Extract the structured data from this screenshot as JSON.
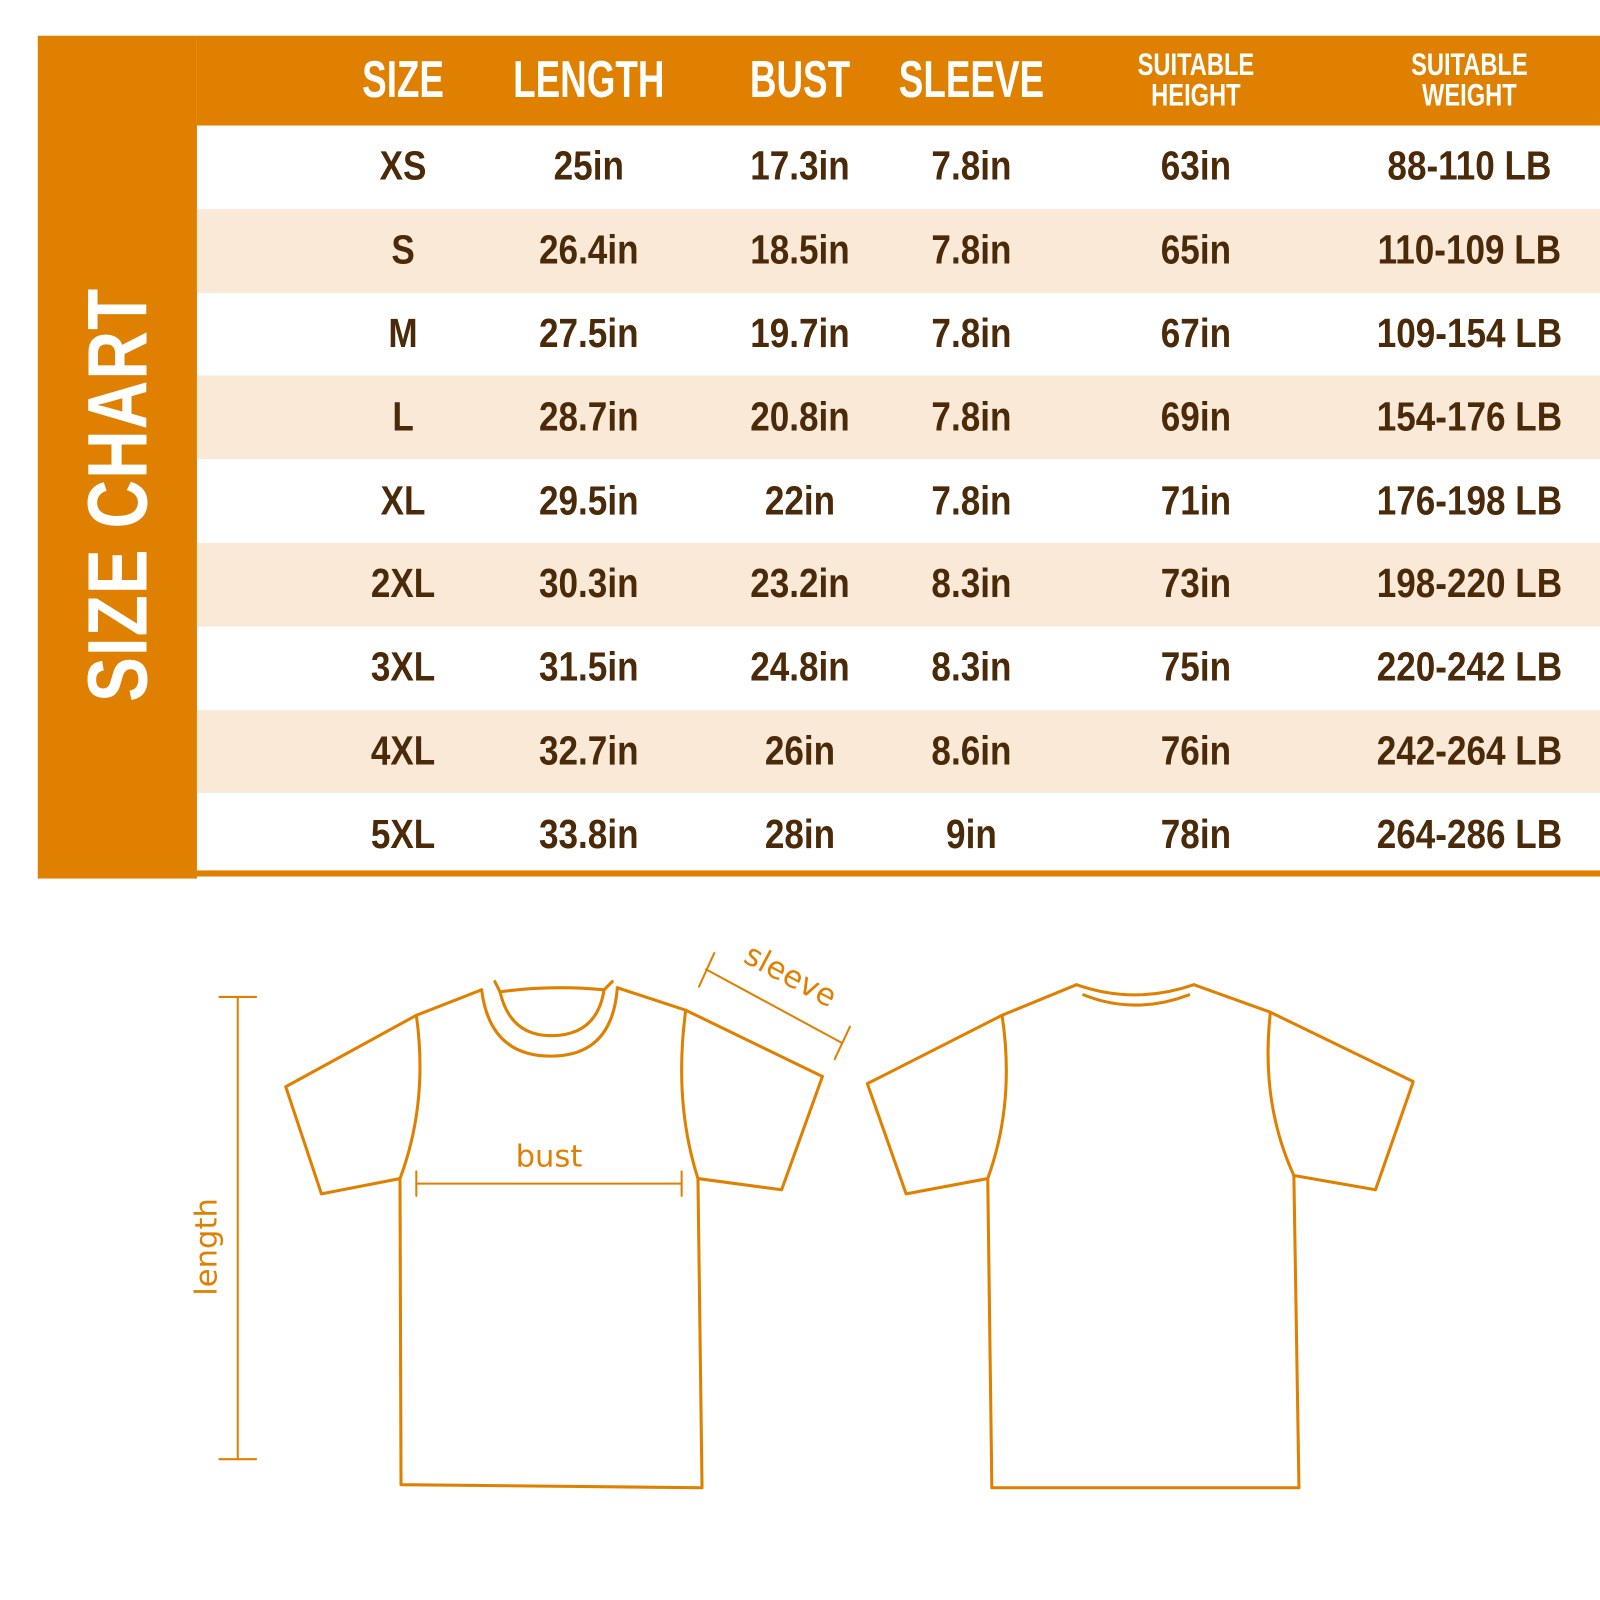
{
  "title": "SIZE CHART",
  "colors": {
    "accent": "#E08000",
    "stripe": "#FAE9D7",
    "text": "#4A2A08"
  },
  "columns": [
    {
      "label": [
        "SIZE"
      ]
    },
    {
      "label": [
        "LENGTH"
      ]
    },
    {
      "label": [
        "BUST"
      ]
    },
    {
      "label": [
        "SLEEVE"
      ]
    },
    {
      "label": [
        "SUITABLE",
        "HEIGHT"
      ]
    },
    {
      "label": [
        "SUITABLE",
        "WEIGHT"
      ]
    }
  ],
  "rows": [
    [
      "XS",
      "25in",
      "17.3in",
      "7.8in",
      "63in",
      "88-110 LB"
    ],
    [
      "S",
      "26.4in",
      "18.5in",
      "7.8in",
      "65in",
      "110-109 LB"
    ],
    [
      "M",
      "27.5in",
      "19.7in",
      "7.8in",
      "67in",
      "109-154 LB"
    ],
    [
      "L",
      "28.7in",
      "20.8in",
      "7.8in",
      "69in",
      "154-176 LB"
    ],
    [
      "XL",
      "29.5in",
      "22in",
      "7.8in",
      "71in",
      "176-198 LB"
    ],
    [
      "2XL",
      "30.3in",
      "23.2in",
      "8.3in",
      "73in",
      "198-220 LB"
    ],
    [
      "3XL",
      "31.5in",
      "24.8in",
      "8.3in",
      "75in",
      "220-242 LB"
    ],
    [
      "4XL",
      "32.7in",
      "26in",
      "8.6in",
      "76in",
      "242-264 LB"
    ],
    [
      "5XL",
      "33.8in",
      "28in",
      "9in",
      "78in",
      "264-286 LB"
    ]
  ],
  "diagram": {
    "length_label": "length",
    "bust_label": "bust",
    "sleeve_label": "sleeve"
  }
}
